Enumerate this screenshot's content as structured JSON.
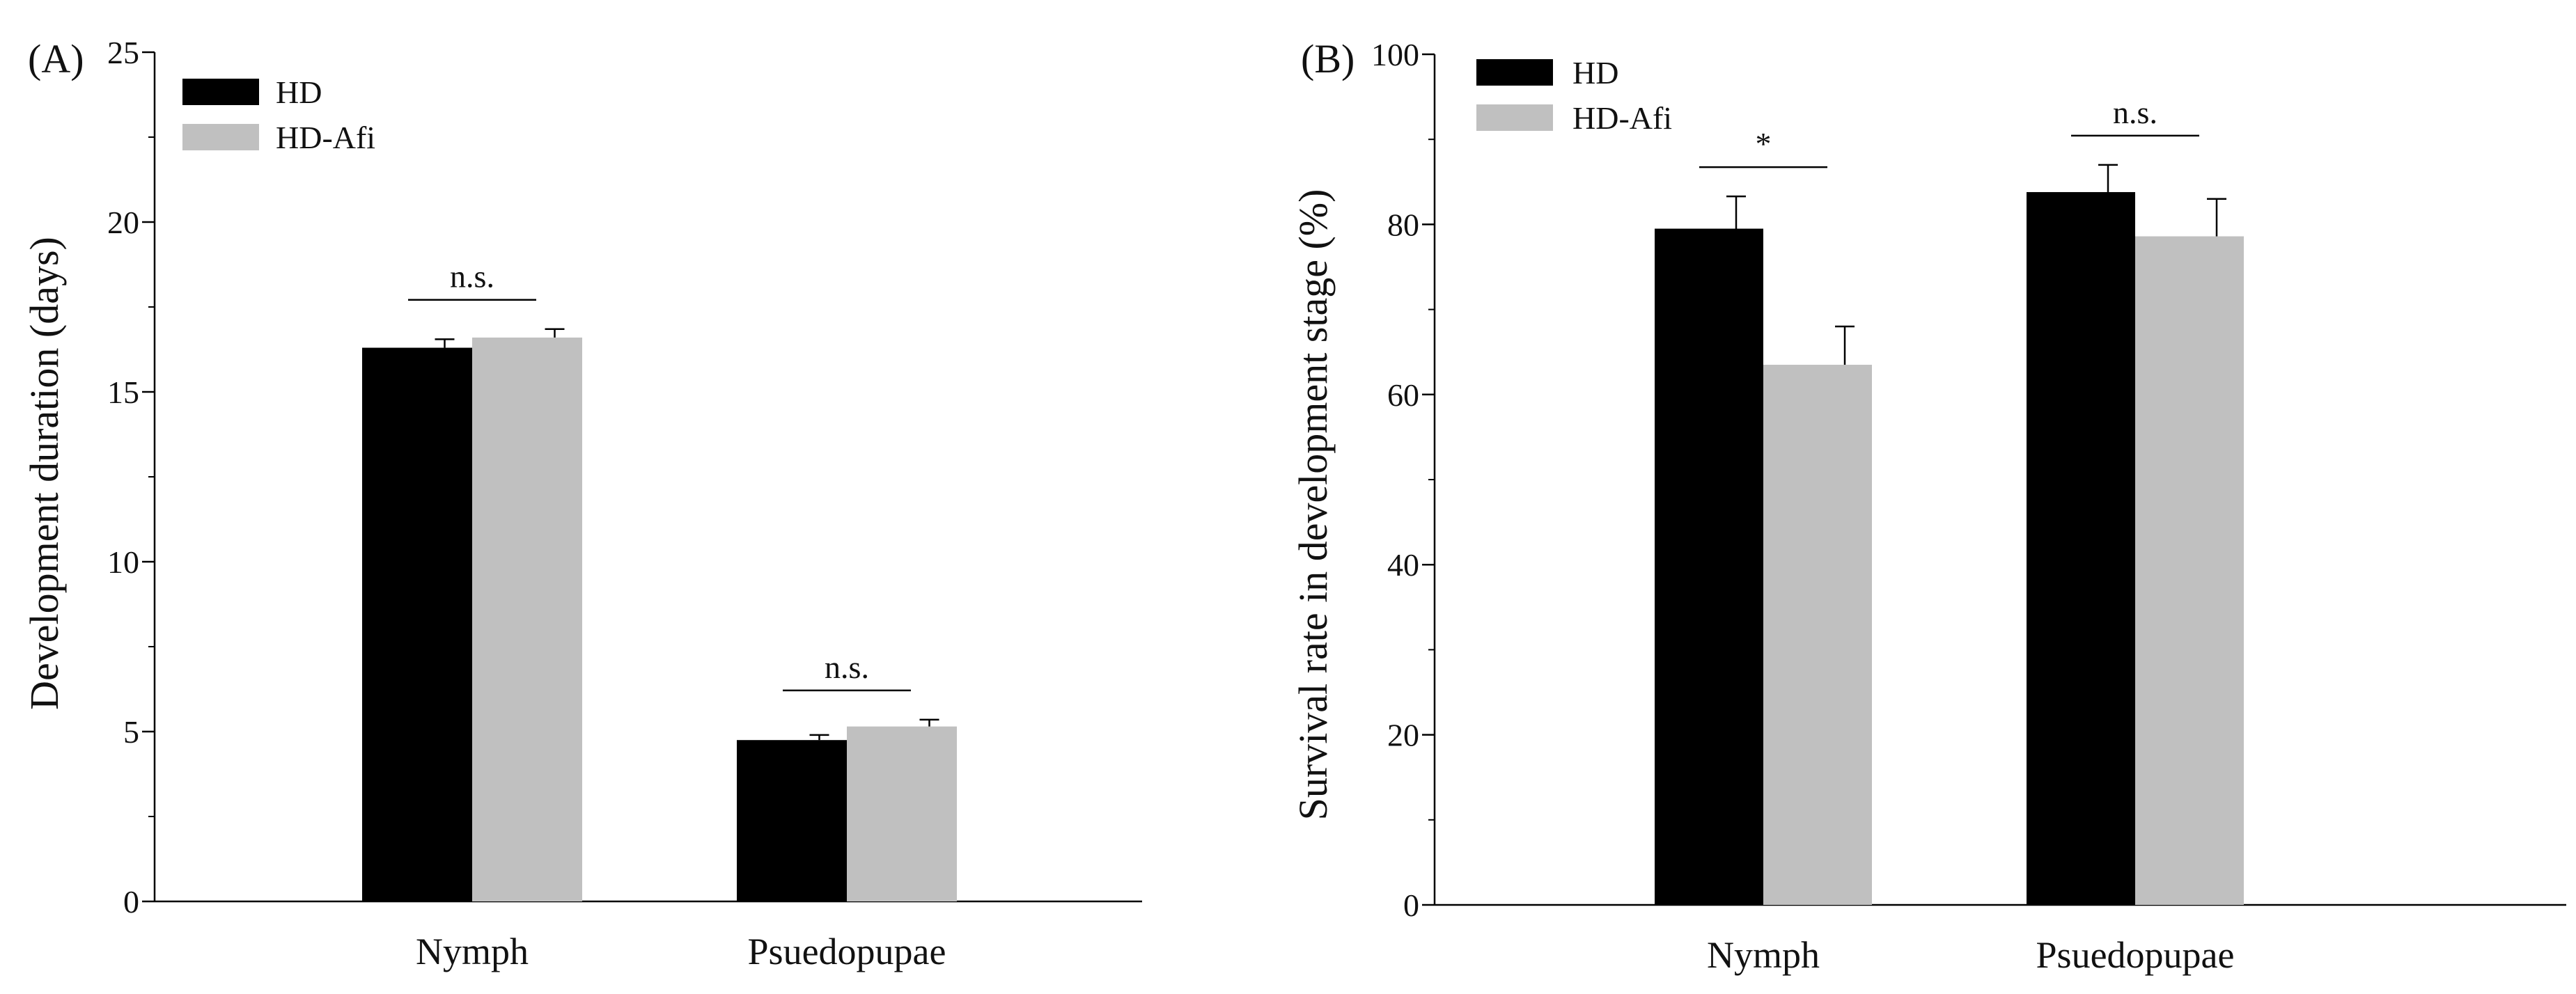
{
  "figure": {
    "series_names": [
      "HD",
      "HD-Afi"
    ],
    "colors": {
      "HD": "#000000",
      "HD-Afi": "#c0c0c0"
    }
  },
  "chart_data": [
    {
      "type": "bar",
      "panel_label": "(A)",
      "title": "",
      "xlabel": "",
      "ylabel": "Development duration (days)",
      "categories": [
        "Nymph",
        "Psuedopupae"
      ],
      "ylim": [
        0,
        25
      ],
      "ticks": [
        "0",
        "5",
        "10",
        "15",
        "20",
        "25"
      ],
      "tick_values": [
        0,
        5,
        10,
        15,
        20,
        25
      ],
      "minor_step": 2.5,
      "legend_position": "top-left",
      "series": [
        {
          "name": "HD",
          "values": [
            16.3,
            4.75
          ],
          "errors": [
            0.25,
            0.15
          ]
        },
        {
          "name": "HD-Afi",
          "values": [
            16.6,
            5.15
          ],
          "errors": [
            0.25,
            0.2
          ]
        }
      ],
      "significance": [
        "n.s.",
        "n.s."
      ]
    },
    {
      "type": "bar",
      "panel_label": "(B)",
      "title": "",
      "xlabel": "",
      "ylabel": "Survival rate in development stage (%)",
      "categories": [
        "Nymph",
        "Psuedopupae"
      ],
      "ylim": [
        0,
        100
      ],
      "ticks": [
        "0",
        "20",
        "40",
        "60",
        "80",
        "100"
      ],
      "tick_values": [
        0,
        20,
        40,
        60,
        80,
        100
      ],
      "minor_step": 10,
      "legend_position": "top-left",
      "series": [
        {
          "name": "HD",
          "values": [
            79.5,
            83.8
          ],
          "errors": [
            3.8,
            3.2
          ]
        },
        {
          "name": "HD-Afi",
          "values": [
            63.5,
            78.6
          ],
          "errors": [
            4.5,
            4.4
          ]
        }
      ],
      "significance": [
        "*",
        "n.s."
      ]
    }
  ]
}
